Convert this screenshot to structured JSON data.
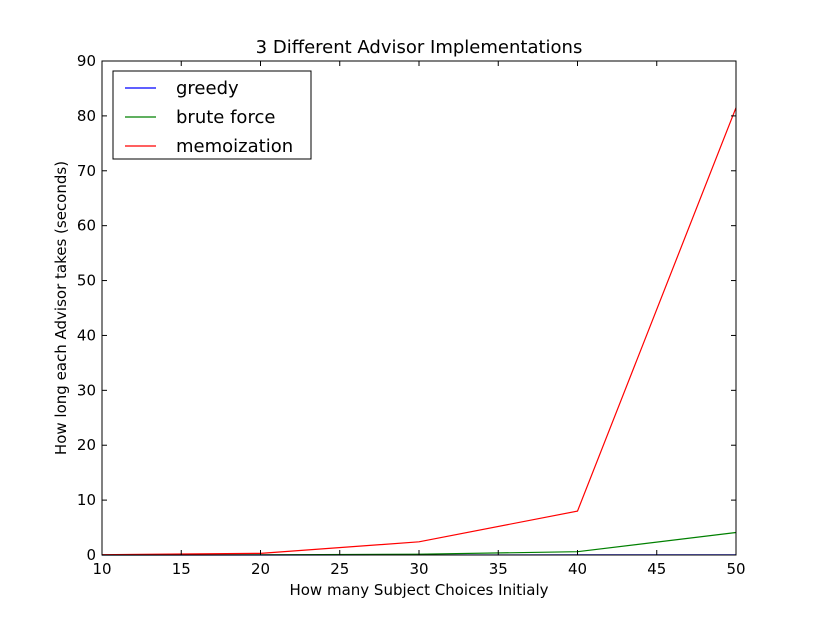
{
  "chart_data": {
    "type": "line",
    "title": "3 Different Advisor Implementations",
    "xlabel": "How many Subject Choices Initialy",
    "ylabel": "How long each Advisor takes (seconds)",
    "xlim": [
      10,
      50
    ],
    "ylim": [
      0,
      90
    ],
    "xticks": [
      10,
      15,
      20,
      25,
      30,
      35,
      40,
      45,
      50
    ],
    "yticks": [
      0,
      10,
      20,
      30,
      40,
      50,
      60,
      70,
      80,
      90
    ],
    "grid": false,
    "legend_position": "upper-left",
    "x": [
      10,
      20,
      30,
      40,
      50
    ],
    "series": [
      {
        "name": "greedy",
        "color": "#0000ff",
        "values": [
          0.0,
          0.0,
          0.01,
          0.02,
          0.03
        ]
      },
      {
        "name": "brute force",
        "color": "#008000",
        "values": [
          0.0,
          0.02,
          0.15,
          0.6,
          4.1
        ]
      },
      {
        "name": "memoization",
        "color": "#ff0000",
        "values": [
          0.05,
          0.3,
          2.4,
          8.0,
          81.5
        ]
      }
    ]
  }
}
